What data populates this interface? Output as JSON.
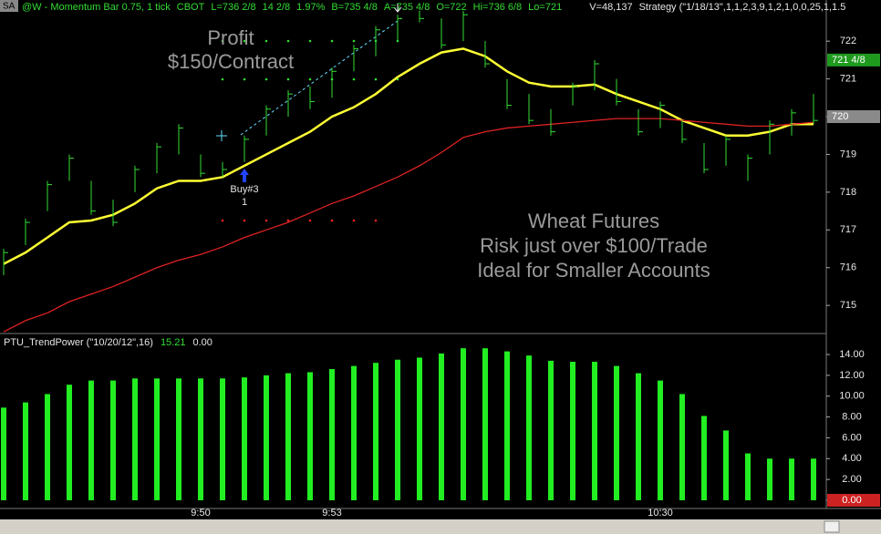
{
  "chart_data": [
    {
      "type": "hlc",
      "symbol_tag": "SA",
      "header": [
        "@W - Momentum Bar 0.75, 1 tick",
        "CBOT",
        "L=736 2/8",
        "14 2/8",
        "1.97%",
        "B=735 4/8",
        "A=735 4/8",
        "O=722",
        "Hi=736 6/8",
        "Lo=721",
        "V=48,137",
        "Strategy (\"1/18/13\",1,1,2,3,9,1,2,1,0,0,25,1,1.5"
      ],
      "annotations": [
        "Profit",
        "$150/Contract",
        "Wheat Futures",
        "Risk just over $100/Trade",
        "Ideal for Smaller Accounts",
        "Buy#3",
        "1"
      ],
      "color": "#33dd33",
      "high": [
        716.5,
        717.3,
        718.3,
        719.0,
        718.3,
        717.8,
        718.7,
        719.3,
        719.8,
        719.0,
        718.8,
        719.5,
        720.3,
        720.7,
        720.8,
        721.3,
        721.9,
        722.4,
        722.7,
        722.8,
        722.6,
        722.8,
        722.0,
        721.0,
        720.6,
        720.2,
        720.9,
        721.5,
        721.0,
        720.2,
        720.4,
        719.9,
        719.3,
        719.5,
        719.0,
        719.9,
        720.2,
        720.6
      ],
      "low": [
        715.8,
        716.6,
        717.5,
        718.3,
        717.4,
        717.1,
        718.0,
        718.5,
        719.0,
        718.4,
        718.4,
        718.8,
        719.5,
        720.0,
        720.2,
        720.5,
        721.2,
        721.6,
        722.0,
        722.5,
        721.8,
        722.0,
        721.3,
        720.2,
        719.8,
        719.5,
        720.3,
        720.7,
        720.3,
        719.5,
        719.7,
        719.3,
        718.5,
        718.7,
        718.3,
        719.0,
        719.5,
        719.8
      ],
      "close": [
        716.4,
        717.2,
        718.2,
        718.9,
        717.5,
        717.2,
        718.6,
        719.2,
        719.7,
        718.5,
        718.6,
        719.4,
        720.2,
        720.6,
        720.4,
        721.2,
        721.8,
        722.3,
        722.6,
        722.6,
        721.9,
        722.7,
        721.4,
        720.3,
        719.9,
        719.6,
        720.8,
        721.4,
        720.4,
        719.6,
        720.3,
        719.4,
        718.6,
        719.4,
        718.9,
        719.8,
        720.1,
        719.9
      ],
      "series": [
        {
          "color": "#ffff33",
          "values": [
            716.1,
            716.4,
            716.8,
            717.2,
            717.25,
            717.4,
            717.7,
            718.1,
            718.3,
            718.3,
            718.4,
            718.7,
            719.0,
            719.3,
            719.6,
            720.0,
            720.25,
            720.6,
            721.05,
            721.4,
            721.7,
            721.8,
            721.6,
            721.2,
            720.9,
            720.8,
            720.8,
            720.85,
            720.6,
            720.4,
            720.2,
            719.9,
            719.7,
            719.5,
            719.5,
            719.6,
            719.8,
            719.8
          ]
        },
        {
          "color": "#dd2222",
          "values": [
            714.3,
            714.6,
            714.8,
            715.1,
            715.3,
            715.5,
            715.75,
            716.0,
            716.2,
            716.35,
            716.55,
            716.8,
            717.0,
            717.2,
            717.45,
            717.7,
            717.9,
            718.15,
            718.4,
            718.7,
            719.05,
            719.45,
            719.6,
            719.7,
            719.75,
            719.8,
            719.85,
            719.9,
            719.95,
            719.95,
            719.95,
            719.9,
            719.85,
            719.8,
            719.75,
            719.75,
            719.8,
            719.85
          ]
        }
      ],
      "ylim": [
        714.28,
        723.09
      ],
      "yticks": [
        715,
        716,
        717,
        718,
        719,
        720,
        721,
        722
      ],
      "price_markers": [
        {
          "value": 721.5,
          "label": "721 4/8",
          "color": "#1f9a1f"
        },
        {
          "value": 720,
          "label": "720",
          "color": "#8a8a8a"
        }
      ]
    },
    {
      "type": "bar",
      "title": "PTU_TrendPower (\"10/20/12\",16)",
      "readouts": [
        "15.21",
        "0.00"
      ],
      "categories": [
        null,
        null,
        null,
        null,
        null,
        null,
        null,
        null,
        null,
        "9:50",
        null,
        null,
        null,
        null,
        null,
        "9:53",
        null,
        null,
        null,
        null,
        null,
        null,
        null,
        null,
        null,
        null,
        null,
        null,
        null,
        null,
        "10:30",
        null,
        null,
        null,
        null,
        null,
        null,
        null
      ],
      "color": "#22ee22",
      "values": [
        8.9,
        9.4,
        10.2,
        11.1,
        11.5,
        11.5,
        11.7,
        11.7,
        11.7,
        11.7,
        11.7,
        11.8,
        12.0,
        12.2,
        12.3,
        12.6,
        12.9,
        13.2,
        13.5,
        13.7,
        14.1,
        14.6,
        14.6,
        14.3,
        13.9,
        13.4,
        13.3,
        13.3,
        12.9,
        12.2,
        11.5,
        10.2,
        8.1,
        6.7,
        4.5,
        4.0,
        4.0,
        4.0
      ],
      "ylim": [
        -0.79,
        15.84
      ],
      "yticks": [
        {
          "value": 0,
          "label": "0.00"
        },
        {
          "value": 2,
          "label": "2.00"
        },
        {
          "value": 4,
          "label": "4.00"
        },
        {
          "value": 6,
          "label": "6.00"
        },
        {
          "value": 8,
          "label": "8.00"
        },
        {
          "value": 10,
          "label": "10.00"
        },
        {
          "value": 12,
          "label": "12.00"
        },
        {
          "value": 14,
          "label": "14.00"
        }
      ],
      "price_marker": {
        "value": 0,
        "label": "0.00",
        "color": "#cc2222"
      }
    }
  ]
}
